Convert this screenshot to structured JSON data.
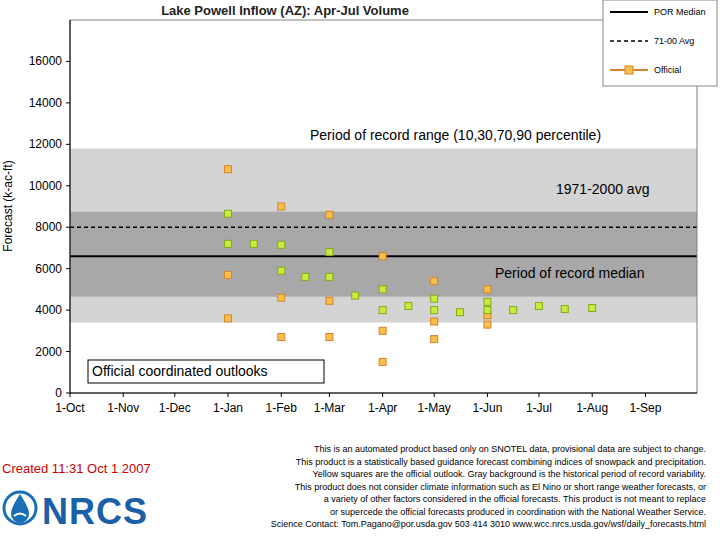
{
  "chart_data": {
    "type": "scatter",
    "title": "Lake Powell Inflow (AZ): Apr-Jul Volume",
    "y_label": "Forecast (k-ac-ft)",
    "xlim": [
      0,
      365
    ],
    "xticks": [
      {
        "value": 0,
        "label": "1-Oct"
      },
      {
        "value": 31,
        "label": "1-Nov"
      },
      {
        "value": 61,
        "label": "1-Dec"
      },
      {
        "value": 92,
        "label": "1-Jan"
      },
      {
        "value": 123,
        "label": "1-Feb"
      },
      {
        "value": 151,
        "label": "1-Mar"
      },
      {
        "value": 182,
        "label": "1-Apr"
      },
      {
        "value": 212,
        "label": "1-May"
      },
      {
        "value": 243,
        "label": "1-Jun"
      },
      {
        "value": 273,
        "label": "1-Jul"
      },
      {
        "value": 304,
        "label": "1-Aug"
      },
      {
        "value": 335,
        "label": "1-Sep"
      }
    ],
    "ylim": [
      0,
      18000
    ],
    "yticks": [
      0,
      2000,
      4000,
      6000,
      8000,
      10000,
      12000,
      14000,
      16000
    ],
    "grid": false,
    "legend": "top-right",
    "bands": [
      {
        "low": 3400,
        "high": 11800,
        "color": "#d4d4d4"
      },
      {
        "low": 4650,
        "high": 8750,
        "color": "#a8a8a8"
      }
    ],
    "reference_lines": [
      {
        "name": "POR Median",
        "value": 6600,
        "line_style": "solid",
        "color": "#000000"
      },
      {
        "name": "71-00 Avg",
        "value": 8000,
        "line_style": "dashed",
        "color": "#000000"
      }
    ],
    "series": [
      {
        "name": "Official",
        "color": "#f7c04a",
        "marker": "square",
        "x": [
          92,
          92,
          92,
          123,
          123,
          123,
          151,
          151,
          151,
          182,
          182,
          182,
          212,
          212,
          212,
          243,
          243,
          243
        ],
        "values": [
          10800,
          5700,
          3600,
          9000,
          4600,
          2700,
          8600,
          4450,
          2700,
          6600,
          3000,
          1500,
          5400,
          3450,
          2600,
          5000,
          3750,
          3300
        ]
      },
      {
        "color": "#c8ec3c",
        "marker": "square",
        "x": [
          92,
          92,
          107,
          123,
          123,
          137,
          151,
          151,
          166,
          182,
          182,
          197,
          212,
          212,
          227,
          243,
          243,
          258,
          273,
          288,
          304
        ],
        "values": [
          8650,
          7200,
          7200,
          7150,
          5900,
          5600,
          6800,
          5600,
          4700,
          5000,
          4000,
          4200,
          4550,
          4000,
          3900,
          4400,
          4000,
          4000,
          4200,
          4050,
          4100
        ]
      }
    ],
    "annotations": [
      "Period of record range (10,30,70,90 percentile)",
      "1971-2000 avg",
      "Period of record median",
      "Official coordinated outlooks"
    ]
  },
  "footer": {
    "created": "Created 11:31 Oct 1 2007",
    "logo": "NRCS",
    "notes": [
      "This is an automated product based only on SNOTEL data, provisional data are subject to change.",
      "This product is a statistically based guidance forecast combining indices of snowpack and precipitation.",
      "Yellow squares are the official outlook. Gray background is the historical period of record variability.",
      "This product does not consider climate information such as El Nino or short range weather forecasts, or",
      "a variety of other factors considered in the official forecasts. This product is not meant to replace",
      "or supercede the official forecasts produced in coordination with the National Weather Service.",
      "Science Contact: Tom.Pagano@por.usda.gov 503 414 3010 www.wcc.nrcs.usda.gov/wsf/daily_forecasts.html"
    ]
  }
}
